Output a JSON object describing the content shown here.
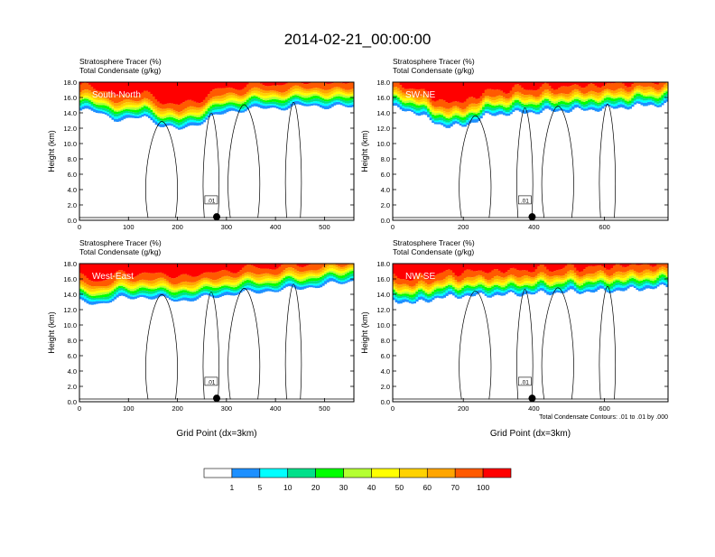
{
  "title": "2014-02-21_00:00:00",
  "footnote": "Total Condensate Contours: .01 to .01 by .000",
  "colorbar": {
    "colors": [
      "#ffffff",
      "#1e90ff",
      "#00ffff",
      "#00e08a",
      "#00ff00",
      "#b4ff32",
      "#ffff00",
      "#ffd200",
      "#ffa500",
      "#ff5a00",
      "#ff0000"
    ],
    "labels": [
      "1",
      "5",
      "10",
      "20",
      "30",
      "40",
      "50",
      "60",
      "70",
      "100"
    ]
  },
  "chart_data": [
    {
      "type": "heatmap",
      "panel_label": "South-North",
      "subtitle_lines": [
        "Stratosphere Tracer   (%)",
        "Total Condensate   (g/kg)"
      ],
      "ylabel": "Height (km)",
      "xlabel": "",
      "xlim": [
        0,
        560
      ],
      "ylim": [
        0,
        18
      ],
      "x_ticks": [
        "0",
        "100",
        "200",
        "300",
        "400",
        "500"
      ],
      "y_ticks": [
        "0.0",
        "2.0",
        "4.0",
        "6.0",
        "8.0",
        "10.0",
        "12.0",
        "14.0",
        "16.0",
        "18.0"
      ],
      "marker_x": 280,
      "contour_label": ".01",
      "tropopause_profile": [
        [
          0,
          14.3
        ],
        [
          40,
          14.0
        ],
        [
          70,
          13.2
        ],
        [
          100,
          13.0
        ],
        [
          130,
          13.6
        ],
        [
          170,
          12.2
        ],
        [
          200,
          11.8
        ],
        [
          230,
          12.4
        ],
        [
          260,
          13.2
        ],
        [
          300,
          14.1
        ],
        [
          340,
          14.5
        ],
        [
          400,
          14.6
        ],
        [
          460,
          14.9
        ],
        [
          520,
          14.8
        ],
        [
          560,
          14.7
        ]
      ]
    },
    {
      "type": "heatmap",
      "panel_label": "SW-NE",
      "subtitle_lines": [
        "Stratosphere Tracer   (%)",
        "Total Condensate   (g/kg)"
      ],
      "ylabel": "Height (km)",
      "xlabel": "",
      "xlim": [
        0,
        780
      ],
      "ylim": [
        0,
        18
      ],
      "x_ticks": [
        "0",
        "200",
        "400",
        "600"
      ],
      "y_ticks": [
        "0.0",
        "2.0",
        "4.0",
        "6.0",
        "8.0",
        "10.0",
        "12.0",
        "14.0",
        "16.0",
        "18.0"
      ],
      "marker_x": 395,
      "contour_label": ".01",
      "tropopause_profile": [
        [
          0,
          14.6
        ],
        [
          60,
          14.1
        ],
        [
          120,
          12.6
        ],
        [
          160,
          12.2
        ],
        [
          200,
          12.3
        ],
        [
          260,
          13.6
        ],
        [
          320,
          13.9
        ],
        [
          400,
          14.1
        ],
        [
          480,
          14.3
        ],
        [
          560,
          14.4
        ],
        [
          650,
          14.7
        ],
        [
          720,
          15.0
        ],
        [
          780,
          15.1
        ]
      ]
    },
    {
      "type": "heatmap",
      "panel_label": "West-East",
      "subtitle_lines": [
        "Stratosphere Tracer   (%)",
        "Total Condensate   (g/kg)"
      ],
      "ylabel": "Height (km)",
      "xlabel": "Grid Point (dx=3km)",
      "xlim": [
        0,
        560
      ],
      "ylim": [
        0,
        18
      ],
      "x_ticks": [
        "0",
        "100",
        "200",
        "300",
        "400",
        "500"
      ],
      "y_ticks": [
        "0.0",
        "2.0",
        "4.0",
        "6.0",
        "8.0",
        "10.0",
        "12.0",
        "14.0",
        "16.0",
        "18.0"
      ],
      "marker_x": 280,
      "contour_label": ".01",
      "tropopause_profile": [
        [
          0,
          13.0
        ],
        [
          40,
          12.8
        ],
        [
          80,
          13.4
        ],
        [
          120,
          13.7
        ],
        [
          160,
          13.4
        ],
        [
          220,
          13.2
        ],
        [
          260,
          13.6
        ],
        [
          320,
          14.1
        ],
        [
          400,
          14.5
        ],
        [
          480,
          15.0
        ],
        [
          540,
          15.6
        ],
        [
          560,
          15.8
        ]
      ]
    },
    {
      "type": "heatmap",
      "panel_label": "NW-SE",
      "subtitle_lines": [
        "Stratosphere Tracer   (%)",
        "Total Condensate   (g/kg)"
      ],
      "ylabel": "Height (km)",
      "xlabel": "Grid Point (dx=3km)",
      "xlim": [
        0,
        780
      ],
      "ylim": [
        0,
        18
      ],
      "x_ticks": [
        "0",
        "200",
        "400",
        "600"
      ],
      "y_ticks": [
        "0.0",
        "2.0",
        "4.0",
        "6.0",
        "8.0",
        "10.0",
        "12.0",
        "14.0",
        "16.0",
        "18.0"
      ],
      "marker_x": 395,
      "contour_label": ".01",
      "tropopause_profile": [
        [
          0,
          13.2
        ],
        [
          60,
          12.8
        ],
        [
          120,
          13.5
        ],
        [
          200,
          13.8
        ],
        [
          300,
          13.9
        ],
        [
          400,
          14.1
        ],
        [
          500,
          14.3
        ],
        [
          600,
          14.4
        ],
        [
          700,
          14.7
        ],
        [
          780,
          15.0
        ]
      ]
    }
  ]
}
